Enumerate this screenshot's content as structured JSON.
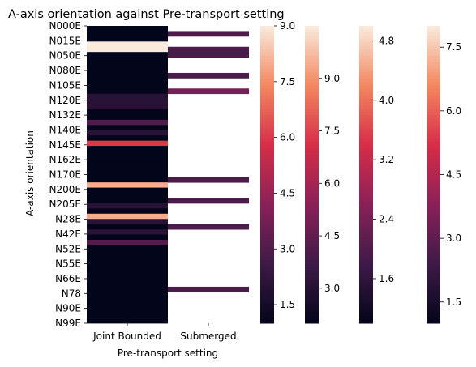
{
  "chart_data": {
    "type": "heatmap",
    "title": "A-axis orientation against Pre-transport setting",
    "xlabel": "Pre-transport setting",
    "ylabel": "A-axis orientation",
    "x_categories": [
      "Joint Bounded",
      "Submerged"
    ],
    "y_tick_labels": [
      "N000E",
      "N015E",
      "N050E",
      "N080E",
      "N105E",
      "N120E",
      "N132E",
      "N140E",
      "N145E",
      "N162E",
      "N170E",
      "N200E",
      "N205E",
      "N28E",
      "N42E",
      "N52E",
      "N55E",
      "N66E",
      "N78",
      "N90E",
      "N99E"
    ],
    "row_count": 57,
    "columns": [
      {
        "name": "Joint Bounded",
        "colorbar": {
          "min": 1.0,
          "max": 9.0,
          "ticks": [
            "1.5",
            "3.0",
            "4.5",
            "6.0",
            "7.5",
            "9.0"
          ]
        },
        "values": [
          1,
          1,
          1,
          9,
          9,
          1,
          1,
          1,
          1,
          1,
          1,
          1,
          1,
          2,
          2,
          2,
          1,
          1,
          3,
          1,
          2,
          1,
          6,
          1,
          1,
          1,
          1,
          1,
          1,
          1,
          8,
          1,
          1,
          1,
          2,
          1,
          8,
          2,
          1,
          2,
          1,
          3,
          1,
          1,
          1,
          1,
          1,
          1,
          1,
          1,
          1,
          1,
          1,
          1,
          1,
          1,
          1
        ]
      },
      {
        "name": "Submerged",
        "colorbar": {
          "min": 2.0,
          "max": 10.5,
          "ticks": [
            "3.0",
            "4.5",
            "6.0",
            "7.5",
            "9.0"
          ]
        },
        "values": [
          null,
          4,
          null,
          null,
          4,
          4,
          null,
          null,
          null,
          4,
          null,
          null,
          5,
          null,
          null,
          null,
          null,
          null,
          null,
          null,
          null,
          null,
          null,
          null,
          null,
          null,
          null,
          null,
          null,
          4,
          null,
          null,
          null,
          4,
          null,
          null,
          null,
          null,
          4,
          null,
          null,
          null,
          null,
          null,
          null,
          null,
          null,
          null,
          null,
          null,
          4,
          null,
          null,
          null,
          null,
          null,
          null
        ]
      }
    ],
    "extra_colorbars": [
      {
        "min": 1.0,
        "max": 5.0,
        "ticks": [
          "1.6",
          "2.4",
          "3.2",
          "4.0",
          "4.8"
        ]
      },
      {
        "min": 1.0,
        "max": 8.0,
        "ticks": [
          "1.5",
          "3.0",
          "4.5",
          "6.0",
          "7.5"
        ]
      }
    ]
  }
}
